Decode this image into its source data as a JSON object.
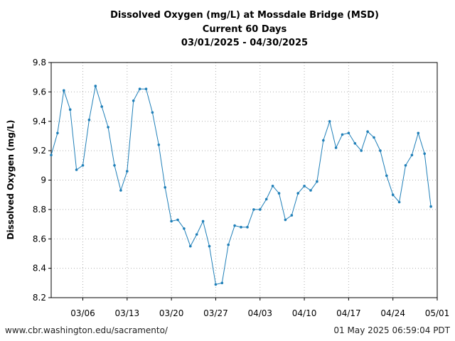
{
  "header": {
    "title_line1": "Dissolved Oxygen (mg/L) at Mossdale Bridge (MSD)",
    "title_line2": "Current 60 Days",
    "title_line3": "03/01/2025 - 04/30/2025"
  },
  "footer": {
    "source_url": "www.cbr.washington.edu/sacramento/",
    "timestamp": "01 May 2025 06:59:04 PDT"
  },
  "chart_data": {
    "type": "line",
    "title": "Dissolved Oxygen (mg/L) at Mossdale Bridge (MSD)",
    "subtitle": "Current 60 Days 03/01/2025 - 04/30/2025",
    "ylabel": "Dissolved Oxygen (mg/L)",
    "xlabel": "",
    "ylim": [
      8.2,
      9.8
    ],
    "xlim": [
      "2025-03-01",
      "2025-05-01"
    ],
    "yticks": [
      {
        "value": 8.2,
        "label": "8.2"
      },
      {
        "value": 8.4,
        "label": "8.4"
      },
      {
        "value": 8.6,
        "label": "8.6"
      },
      {
        "value": 8.8,
        "label": "8.8"
      },
      {
        "value": 9.0,
        "label": "9"
      },
      {
        "value": 9.2,
        "label": "9.2"
      },
      {
        "value": 9.4,
        "label": "9.4"
      },
      {
        "value": 9.6,
        "label": "9.6"
      },
      {
        "value": 9.8,
        "label": "9.8"
      }
    ],
    "xticks": [
      {
        "date": "2025-03-06",
        "label": "03/06"
      },
      {
        "date": "2025-03-13",
        "label": "03/13"
      },
      {
        "date": "2025-03-20",
        "label": "03/20"
      },
      {
        "date": "2025-03-27",
        "label": "03/27"
      },
      {
        "date": "2025-04-03",
        "label": "04/03"
      },
      {
        "date": "2025-04-10",
        "label": "04/10"
      },
      {
        "date": "2025-04-17",
        "label": "04/17"
      },
      {
        "date": "2025-04-24",
        "label": "04/24"
      },
      {
        "date": "2025-05-01",
        "label": "05/01"
      }
    ],
    "grid": true,
    "color": "#1f7fb8",
    "series": [
      {
        "x": [
          "2025-03-01",
          "2025-03-02",
          "2025-03-03",
          "2025-03-04",
          "2025-03-05",
          "2025-03-06",
          "2025-03-07",
          "2025-03-08",
          "2025-03-09",
          "2025-03-10",
          "2025-03-11",
          "2025-03-12",
          "2025-03-13",
          "2025-03-14",
          "2025-03-15",
          "2025-03-16",
          "2025-03-17",
          "2025-03-18",
          "2025-03-19",
          "2025-03-20",
          "2025-03-21",
          "2025-03-22",
          "2025-03-23",
          "2025-03-24",
          "2025-03-25",
          "2025-03-26",
          "2025-03-27",
          "2025-03-28",
          "2025-03-29",
          "2025-03-30",
          "2025-03-31",
          "2025-04-01",
          "2025-04-02",
          "2025-04-03",
          "2025-04-04",
          "2025-04-05",
          "2025-04-06",
          "2025-04-07",
          "2025-04-08",
          "2025-04-09",
          "2025-04-10",
          "2025-04-11",
          "2025-04-12",
          "2025-04-13",
          "2025-04-14",
          "2025-04-15",
          "2025-04-16",
          "2025-04-17",
          "2025-04-18",
          "2025-04-19",
          "2025-04-20",
          "2025-04-21",
          "2025-04-22",
          "2025-04-23",
          "2025-04-24",
          "2025-04-25",
          "2025-04-26",
          "2025-04-27",
          "2025-04-28",
          "2025-04-29",
          "2025-04-30"
        ],
        "y": [
          9.17,
          9.32,
          9.61,
          9.48,
          9.07,
          9.1,
          9.41,
          9.64,
          9.5,
          9.36,
          9.1,
          8.93,
          9.06,
          9.54,
          9.62,
          9.62,
          9.46,
          9.24,
          8.95,
          8.72,
          8.73,
          8.67,
          8.55,
          8.63,
          8.72,
          8.55,
          8.29,
          8.3,
          8.56,
          8.69,
          8.68,
          8.68,
          8.8,
          8.8,
          8.87,
          8.96,
          8.91,
          8.73,
          8.76,
          8.91,
          8.96,
          8.93,
          8.99,
          9.27,
          9.4,
          9.22,
          9.31,
          9.32,
          9.25,
          9.2,
          9.33,
          9.29,
          9.2,
          9.03,
          8.9,
          8.85,
          9.1,
          9.17,
          9.32,
          9.18,
          8.82
        ]
      }
    ]
  }
}
